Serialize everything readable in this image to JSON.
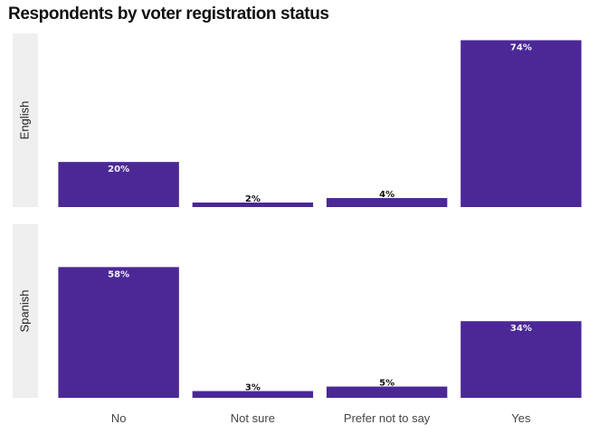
{
  "chart_data": {
    "type": "bar",
    "title": "Respondents by voter registration status",
    "categories": [
      "No",
      "Not sure",
      "Prefer not to say",
      "Yes"
    ],
    "facets": [
      {
        "name": "English",
        "values": [
          20,
          2,
          4,
          74
        ],
        "labels": [
          "20%",
          "2%",
          "4%",
          "74%"
        ]
      },
      {
        "name": "Spanish",
        "values": [
          58,
          3,
          5,
          34
        ],
        "labels": [
          "58%",
          "3%",
          "5%",
          "34%"
        ]
      }
    ],
    "ylim": [
      0,
      77
    ],
    "bar_color": "#4b2896",
    "strip_color": "#efefef",
    "grid": false
  }
}
